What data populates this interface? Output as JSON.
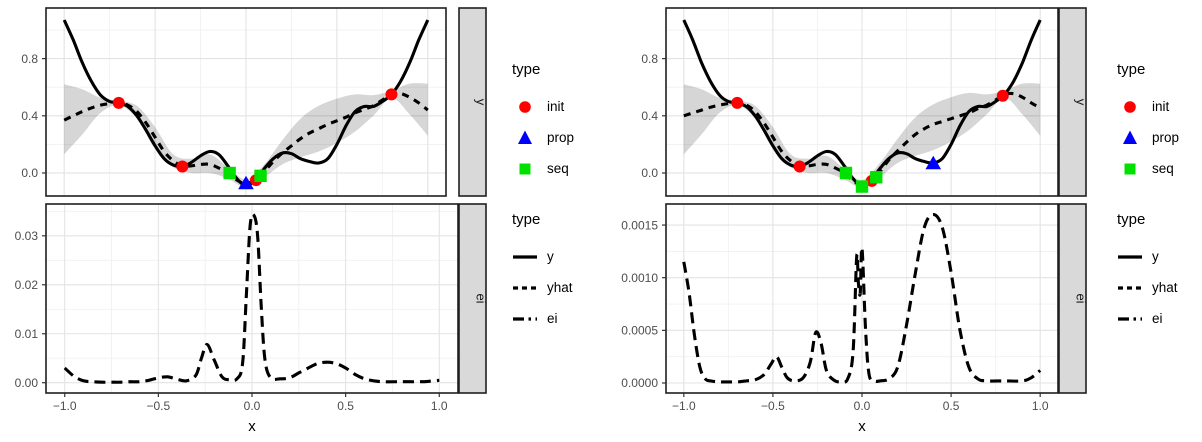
{
  "colors": {
    "init": "#FF0000",
    "prop": "#0000FF",
    "seq": "#00E100",
    "curve": "#000000",
    "ribbon": "rgba(0,0,0,0.16)",
    "panel_bg": "#FFFFFF",
    "panel_border": "#1F1F1F",
    "grid_major": "#E3E3E3",
    "grid_minor": "#F1F1F1",
    "strip_fill": "#D9D9D9",
    "axis_text": "#4D4D4D",
    "tick_mark": "#333333"
  },
  "legends": {
    "points": {
      "title": "type",
      "items": [
        {
          "label": "init",
          "shape": "circle",
          "color": "#FF0000"
        },
        {
          "label": "prop",
          "shape": "triangle",
          "color": "#0000FF"
        },
        {
          "label": "seq",
          "shape": "square",
          "color": "#00E100"
        }
      ]
    },
    "lines": {
      "title": "type",
      "items": [
        {
          "label": "y",
          "linetype": "solid"
        },
        {
          "label": "yhat",
          "linetype": "dashed"
        },
        {
          "label": "ei",
          "linetype": "longdash"
        }
      ]
    }
  },
  "chart_data": [
    {
      "type": "line",
      "facet": "y",
      "xlabel": "",
      "xlim": [
        -1.1,
        1.1
      ],
      "ylim": [
        -0.161,
        1.154
      ],
      "x_ticks": {
        "values": [
          -1,
          -0.5,
          0,
          0.5,
          1
        ],
        "labels": [
          "−1.0",
          "−0.5",
          "0.0",
          "0.5",
          "1.0"
        ]
      },
      "y_ticks": {
        "values": [
          0,
          0.4,
          0.8
        ],
        "labels": [
          "0.0",
          "0.4",
          "0.8"
        ]
      },
      "x_minor": [
        -0.75,
        -0.25,
        0.25,
        0.75
      ],
      "y_minor": [
        0.2,
        0.6,
        1.0
      ],
      "ribbon": {
        "x": [
          -1.0,
          -0.9,
          -0.8,
          -0.7,
          -0.6,
          -0.5,
          -0.4,
          -0.3,
          -0.2,
          -0.1,
          0.0,
          0.1,
          0.2,
          0.3,
          0.4,
          0.5,
          0.6,
          0.7,
          0.8,
          0.9,
          1.0
        ],
        "lower": [
          0.13,
          0.27,
          0.42,
          0.475,
          0.38,
          0.17,
          0.04,
          0.0,
          0.0,
          -0.04,
          -0.1,
          -0.03,
          0.06,
          0.11,
          0.15,
          0.21,
          0.29,
          0.4,
          0.525,
          0.41,
          0.26
        ],
        "upper": [
          0.62,
          0.585,
          0.525,
          0.505,
          0.47,
          0.32,
          0.13,
          0.1,
          0.13,
          0.04,
          -0.045,
          0.06,
          0.23,
          0.38,
          0.47,
          0.52,
          0.55,
          0.545,
          0.575,
          0.625,
          0.625
        ]
      },
      "series": [
        {
          "name": "y",
          "linetype": "solid",
          "x": [
            -1.0,
            -0.95,
            -0.9,
            -0.85,
            -0.8,
            -0.75,
            -0.7,
            -0.65,
            -0.6,
            -0.55,
            -0.5,
            -0.45,
            -0.4,
            -0.35,
            -0.3,
            -0.25,
            -0.2,
            -0.15,
            -0.1,
            -0.05,
            0.0,
            0.05,
            0.1,
            0.15,
            0.2,
            0.25,
            0.3,
            0.35,
            0.4,
            0.45,
            0.5,
            0.55,
            0.6,
            0.65,
            0.7,
            0.75,
            0.8,
            0.85,
            0.9,
            0.95,
            1.0
          ],
          "y": [
            1.07,
            0.93,
            0.77,
            0.64,
            0.545,
            0.5,
            0.49,
            0.465,
            0.4,
            0.3,
            0.19,
            0.1,
            0.055,
            0.045,
            0.075,
            0.12,
            0.15,
            0.13,
            0.05,
            -0.04,
            -0.09,
            -0.05,
            0.03,
            0.1,
            0.14,
            0.135,
            0.1,
            0.08,
            0.07,
            0.1,
            0.2,
            0.33,
            0.43,
            0.465,
            0.465,
            0.5,
            0.55,
            0.64,
            0.77,
            0.93,
            1.07
          ]
        },
        {
          "name": "yhat",
          "linetype": "dashed",
          "x": [
            -1.0,
            -0.95,
            -0.9,
            -0.85,
            -0.8,
            -0.75,
            -0.7,
            -0.65,
            -0.6,
            -0.55,
            -0.5,
            -0.45,
            -0.4,
            -0.35,
            -0.3,
            -0.25,
            -0.2,
            -0.15,
            -0.1,
            -0.05,
            0.0,
            0.05,
            0.1,
            0.15,
            0.2,
            0.25,
            0.3,
            0.35,
            0.4,
            0.45,
            0.5,
            0.55,
            0.6,
            0.65,
            0.7,
            0.75,
            0.8,
            0.85,
            0.9,
            0.95,
            1.0
          ],
          "y": [
            0.37,
            0.4,
            0.43,
            0.455,
            0.475,
            0.485,
            0.49,
            0.475,
            0.43,
            0.35,
            0.25,
            0.15,
            0.085,
            0.05,
            0.05,
            0.06,
            0.06,
            0.035,
            0.0,
            -0.05,
            -0.075,
            -0.045,
            0.01,
            0.08,
            0.14,
            0.19,
            0.24,
            0.28,
            0.31,
            0.34,
            0.365,
            0.39,
            0.42,
            0.445,
            0.47,
            0.51,
            0.55,
            0.555,
            0.53,
            0.49,
            0.44
          ]
        }
      ],
      "points": [
        {
          "type": "init",
          "x": -0.7,
          "y": 0.49
        },
        {
          "type": "init",
          "x": -0.35,
          "y": 0.045
        },
        {
          "type": "init",
          "x": 0.055,
          "y": -0.05
        },
        {
          "type": "init",
          "x": 0.8,
          "y": 0.55
        },
        {
          "type": "prop",
          "x": 0.0,
          "y": -0.075
        },
        {
          "type": "seq",
          "x": -0.09,
          "y": 0.0
        },
        {
          "type": "seq",
          "x": 0.08,
          "y": -0.02
        }
      ]
    },
    {
      "type": "line",
      "facet": "ei",
      "xlabel": "x",
      "xlim": [
        -1.1,
        1.1
      ],
      "ylim": [
        -0.0021,
        0.0365
      ],
      "x_ticks": {
        "values": [
          -1,
          -0.5,
          0,
          0.5,
          1
        ],
        "labels": [
          "−1.0",
          "−0.5",
          "0.0",
          "0.5",
          "1.0"
        ]
      },
      "y_ticks": {
        "values": [
          0,
          0.01,
          0.02,
          0.03
        ],
        "labels": [
          "0.00",
          "0.01",
          "0.02",
          "0.03"
        ]
      },
      "x_minor": [
        -0.75,
        -0.25,
        0.25,
        0.75
      ],
      "y_minor": [
        0.005,
        0.015,
        0.025,
        0.035
      ],
      "series": [
        {
          "name": "ei",
          "linetype": "longdash",
          "x": [
            -1.0,
            -0.95,
            -0.9,
            -0.85,
            -0.8,
            -0.75,
            -0.7,
            -0.65,
            -0.6,
            -0.55,
            -0.5,
            -0.45,
            -0.4,
            -0.35,
            -0.3,
            -0.27,
            -0.24,
            -0.2,
            -0.16,
            -0.12,
            -0.08,
            -0.05,
            -0.03,
            -0.01,
            0.01,
            0.03,
            0.05,
            0.07,
            0.1,
            0.15,
            0.2,
            0.25,
            0.3,
            0.35,
            0.4,
            0.45,
            0.5,
            0.55,
            0.6,
            0.65,
            0.7,
            0.8,
            0.9,
            0.95,
            1.0
          ],
          "y": [
            0.003,
            0.0013,
            0.0004,
            0.0002,
            0.0001,
            0.0001,
            0.0001,
            0.0002,
            0.0002,
            0.0005,
            0.001,
            0.0012,
            0.0007,
            0.0004,
            0.0015,
            0.005,
            0.0078,
            0.0045,
            0.0012,
            0.0006,
            0.0008,
            0.004,
            0.018,
            0.032,
            0.0342,
            0.03,
            0.015,
            0.0045,
            0.001,
            0.0008,
            0.001,
            0.002,
            0.003,
            0.0039,
            0.0042,
            0.0039,
            0.003,
            0.0017,
            0.0008,
            0.0004,
            0.0002,
            0.0002,
            0.0002,
            0.0003,
            0.0005
          ]
        }
      ],
      "points": []
    },
    {
      "type": "line",
      "facet": "y",
      "xlabel": "",
      "xlim": [
        -1.1,
        1.1
      ],
      "ylim": [
        -0.161,
        1.154
      ],
      "x_ticks": {
        "values": [
          -1,
          -0.5,
          0,
          0.5,
          1
        ],
        "labels": [
          "−1.0",
          "−0.5",
          "0.0",
          "0.5",
          "1.0"
        ]
      },
      "y_ticks": {
        "values": [
          0,
          0.4,
          0.8
        ],
        "labels": [
          "0.0",
          "0.4",
          "0.8"
        ]
      },
      "x_minor": [
        -0.75,
        -0.25,
        0.25,
        0.75
      ],
      "y_minor": [
        0.2,
        0.6,
        1.0
      ],
      "ribbon": {
        "x": [
          -1.0,
          -0.9,
          -0.8,
          -0.7,
          -0.6,
          -0.5,
          -0.4,
          -0.3,
          -0.2,
          -0.1,
          0.0,
          0.1,
          0.2,
          0.3,
          0.4,
          0.5,
          0.6,
          0.7,
          0.8,
          0.9,
          1.0
        ],
        "lower": [
          0.13,
          0.27,
          0.42,
          0.475,
          0.38,
          0.17,
          0.04,
          0.0,
          0.0,
          -0.045,
          -0.105,
          -0.03,
          0.07,
          0.12,
          0.16,
          0.22,
          0.3,
          0.41,
          0.525,
          0.41,
          0.26
        ],
        "upper": [
          0.62,
          0.585,
          0.525,
          0.505,
          0.47,
          0.32,
          0.13,
          0.1,
          0.12,
          0.03,
          -0.05,
          0.07,
          0.24,
          0.39,
          0.48,
          0.53,
          0.56,
          0.55,
          0.575,
          0.625,
          0.625
        ]
      },
      "series": [
        {
          "name": "y",
          "linetype": "solid",
          "x": [
            -1.0,
            -0.95,
            -0.9,
            -0.85,
            -0.8,
            -0.75,
            -0.7,
            -0.65,
            -0.6,
            -0.55,
            -0.5,
            -0.45,
            -0.4,
            -0.35,
            -0.3,
            -0.25,
            -0.2,
            -0.15,
            -0.1,
            -0.05,
            0.0,
            0.05,
            0.1,
            0.15,
            0.2,
            0.25,
            0.3,
            0.35,
            0.4,
            0.45,
            0.5,
            0.55,
            0.6,
            0.65,
            0.7,
            0.75,
            0.8,
            0.85,
            0.9,
            0.95,
            1.0
          ],
          "y": [
            1.07,
            0.93,
            0.77,
            0.64,
            0.545,
            0.5,
            0.49,
            0.465,
            0.4,
            0.3,
            0.19,
            0.1,
            0.055,
            0.045,
            0.075,
            0.12,
            0.15,
            0.13,
            0.05,
            -0.04,
            -0.09,
            -0.05,
            0.03,
            0.1,
            0.14,
            0.135,
            0.1,
            0.08,
            0.07,
            0.1,
            0.2,
            0.33,
            0.43,
            0.465,
            0.465,
            0.5,
            0.55,
            0.64,
            0.77,
            0.93,
            1.07
          ]
        },
        {
          "name": "yhat",
          "linetype": "dashed",
          "x": [
            -1.0,
            -0.95,
            -0.9,
            -0.85,
            -0.8,
            -0.75,
            -0.7,
            -0.65,
            -0.6,
            -0.55,
            -0.5,
            -0.45,
            -0.4,
            -0.35,
            -0.3,
            -0.25,
            -0.2,
            -0.15,
            -0.1,
            -0.05,
            0.0,
            0.05,
            0.1,
            0.15,
            0.2,
            0.25,
            0.3,
            0.35,
            0.4,
            0.45,
            0.5,
            0.55,
            0.6,
            0.65,
            0.7,
            0.75,
            0.8,
            0.85,
            0.9,
            0.95,
            1.0
          ],
          "y": [
            0.4,
            0.42,
            0.44,
            0.46,
            0.475,
            0.485,
            0.49,
            0.475,
            0.43,
            0.35,
            0.25,
            0.15,
            0.085,
            0.05,
            0.05,
            0.06,
            0.06,
            0.035,
            0.0,
            -0.055,
            -0.085,
            -0.05,
            0.01,
            0.09,
            0.155,
            0.215,
            0.27,
            0.31,
            0.34,
            0.36,
            0.38,
            0.4,
            0.42,
            0.45,
            0.475,
            0.51,
            0.55,
            0.555,
            0.53,
            0.49,
            0.455
          ]
        }
      ],
      "points": [
        {
          "type": "init",
          "x": -0.7,
          "y": 0.49
        },
        {
          "type": "init",
          "x": -0.35,
          "y": 0.045
        },
        {
          "type": "init",
          "x": 0.055,
          "y": -0.055
        },
        {
          "type": "init",
          "x": 0.79,
          "y": 0.54
        },
        {
          "type": "prop",
          "x": 0.4,
          "y": 0.065
        },
        {
          "type": "seq",
          "x": -0.09,
          "y": 0.0
        },
        {
          "type": "seq",
          "x": 0.0,
          "y": -0.095
        },
        {
          "type": "seq",
          "x": 0.08,
          "y": -0.03
        }
      ]
    },
    {
      "type": "line",
      "facet": "ei",
      "xlabel": "x",
      "xlim": [
        -1.1,
        1.1
      ],
      "ylim": [
        -9.5e-05,
        0.0017
      ],
      "x_ticks": {
        "values": [
          -1,
          -0.5,
          0,
          0.5,
          1
        ],
        "labels": [
          "−1.0",
          "−0.5",
          "0.0",
          "0.5",
          "1.0"
        ]
      },
      "y_ticks": {
        "values": [
          0,
          0.0005,
          0.001,
          0.0015
        ],
        "labels": [
          "0.0000",
          "0.0005",
          "0.0010",
          "0.0015"
        ]
      },
      "x_minor": [
        -0.75,
        -0.25,
        0.25,
        0.75
      ],
      "y_minor": [
        0.00025,
        0.00075,
        0.00125
      ],
      "series": [
        {
          "name": "ei",
          "linetype": "longdash",
          "x": [
            -1.0,
            -0.97,
            -0.94,
            -0.91,
            -0.88,
            -0.85,
            -0.8,
            -0.75,
            -0.7,
            -0.65,
            -0.6,
            -0.55,
            -0.51,
            -0.48,
            -0.45,
            -0.42,
            -0.38,
            -0.33,
            -0.29,
            -0.26,
            -0.23,
            -0.2,
            -0.16,
            -0.12,
            -0.08,
            -0.05,
            -0.03,
            -0.02,
            -0.01,
            0.0,
            0.02,
            0.04,
            0.07,
            0.1,
            0.15,
            0.2,
            0.25,
            0.3,
            0.35,
            0.4,
            0.45,
            0.5,
            0.55,
            0.6,
            0.65,
            0.7,
            0.8,
            0.9,
            0.95,
            1.0
          ],
          "y": [
            0.00115,
            0.00085,
            0.00045,
            0.00015,
            4e-05,
            2e-05,
            1e-05,
            1e-05,
            1e-05,
            2e-05,
            3e-05,
            8e-05,
            0.00018,
            0.00025,
            0.00015,
            5e-05,
            2e-05,
            5e-05,
            0.0002,
            0.00048,
            0.00038,
            0.00012,
            3e-05,
            1e-05,
            4e-05,
            0.0003,
            0.0012,
            0.00095,
            0.00085,
            0.00128,
            0.0005,
            8e-05,
            2e-05,
            2e-05,
            4e-05,
            0.00015,
            0.00055,
            0.00105,
            0.00148,
            0.0016,
            0.00148,
            0.00105,
            0.0005,
            0.00015,
            4e-05,
            2e-05,
            2e-05,
            2e-05,
            5e-05,
            0.00012
          ]
        }
      ],
      "points": []
    }
  ]
}
